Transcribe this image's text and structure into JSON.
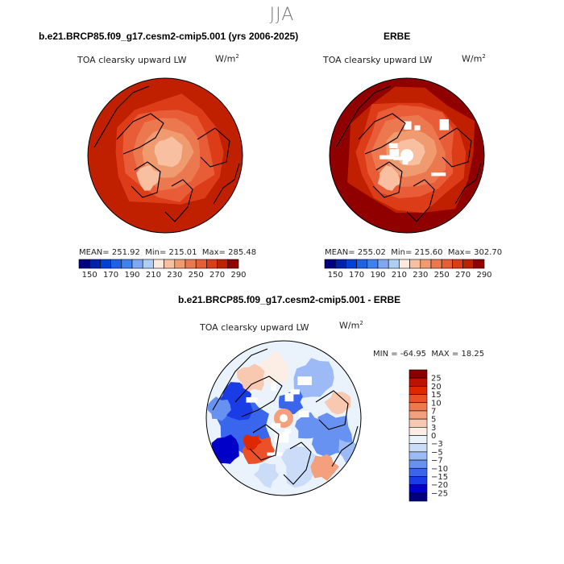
{
  "page_title": "JJA",
  "panels": {
    "model": {
      "header": "b.e21.BRCP85.f09_g17.cesm2-cmip5.001 (yrs 2006-2025)",
      "variable": "TOA clearsky upward LW",
      "units_base": "W/m",
      "units_exp": "2",
      "stats": {
        "mean_label": "MEAN=",
        "mean": "251.92",
        "min_label": "Min=",
        "min": "215.01",
        "max_label": "Max=",
        "max": "285.48"
      }
    },
    "obs": {
      "header": "ERBE",
      "variable": "TOA clearsky upward LW",
      "units_base": "W/m",
      "units_exp": "2",
      "stats": {
        "mean_label": "MEAN=",
        "mean": "255.02",
        "min_label": "Min=",
        "min": "215.60",
        "max_label": "Max=",
        "max": "302.70"
      }
    },
    "diff": {
      "header": "b.e21.BRCP85.f09_g17.cesm2-cmip5.001 - ERBE",
      "variable": "TOA clearsky upward LW",
      "units_base": "W/m",
      "units_exp": "2",
      "minmax": {
        "min_label": "MIN =",
        "min": "-64.95",
        "max_label": "MAX =",
        "max": "18.25"
      }
    }
  },
  "colors": {
    "abs_scale": [
      "#000080",
      "#0020b0",
      "#0040d8",
      "#2060e8",
      "#4080f0",
      "#80a8f0",
      "#b0cdf5",
      "#fce8dc",
      "#f8c0a0",
      "#f09a70",
      "#ec7850",
      "#e85c38",
      "#dc3c18",
      "#c02000",
      "#900000"
    ],
    "diff_scale": [
      "#00007a",
      "#0000c8",
      "#1a3ce6",
      "#3a66ee",
      "#6892f2",
      "#9cbaf5",
      "#cadcf8",
      "#eaf2fc",
      "#fceee4",
      "#f8c8b0",
      "#f4a07c",
      "#f07850",
      "#ec5028",
      "#e02800",
      "#c01000",
      "#8a0000"
    ],
    "land_outline": "#000000",
    "missing": "#ffffff"
  },
  "chart_data": [
    {
      "type": "polar-contour-map",
      "id": "model",
      "title": "TOA clearsky upward LW",
      "units": "W/m2",
      "projection": "north polar stereographic",
      "mean": 251.92,
      "min": 215.01,
      "max": 285.48,
      "levels": [
        150,
        160,
        170,
        180,
        190,
        200,
        210,
        220,
        230,
        240,
        250,
        260,
        270,
        280,
        290
      ],
      "tick_labels": [
        "150",
        "170",
        "190",
        "210",
        "230",
        "250",
        "270",
        "290"
      ],
      "field_by_ring": [
        225,
        232,
        240,
        252,
        262,
        270,
        276
      ],
      "missing_regions": false
    },
    {
      "type": "polar-contour-map",
      "id": "obs",
      "title": "TOA clearsky upward LW",
      "units": "W/m2",
      "projection": "north polar stereographic",
      "mean": 255.02,
      "min": 215.6,
      "max": 302.7,
      "levels": [
        150,
        160,
        170,
        180,
        190,
        200,
        210,
        220,
        230,
        240,
        250,
        260,
        270,
        280,
        290
      ],
      "tick_labels": [
        "150",
        "170",
        "190",
        "210",
        "230",
        "250",
        "270",
        "290"
      ],
      "field_by_ring": [
        222,
        230,
        240,
        255,
        266,
        274,
        282
      ],
      "missing_regions": true
    },
    {
      "type": "polar-contour-map",
      "id": "diff",
      "title": "TOA clearsky upward LW",
      "units": "W/m2",
      "projection": "north polar stereographic",
      "min": -64.95,
      "max": 18.25,
      "levels": [
        -25,
        -20,
        -15,
        -10,
        -7,
        -5,
        -3,
        0,
        3,
        5,
        7,
        10,
        15,
        20,
        25
      ],
      "tick_labels": [
        "25",
        "20",
        "15",
        "10",
        "7",
        "5",
        "3",
        "0",
        "−3",
        "−5",
        "−7",
        "−10",
        "−15",
        "−20",
        "−25"
      ],
      "missing_regions": true
    }
  ]
}
